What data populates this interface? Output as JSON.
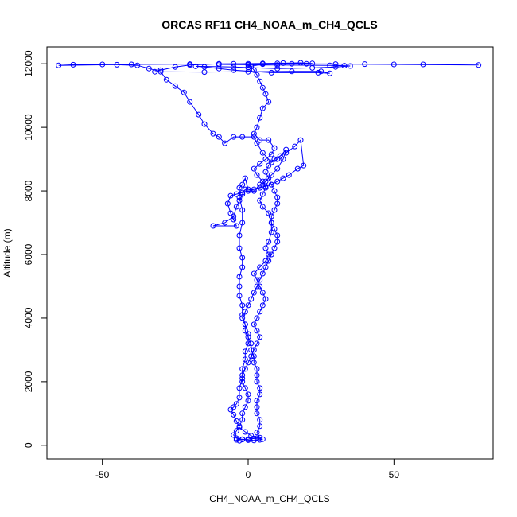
{
  "chart_data": {
    "type": "line",
    "title": "ORCAS RF11 CH4_NOAA_m_CH4_QCLS",
    "xlabel": "CH4_NOAA_m_CH4_QCLS",
    "ylabel": "Altitude (m)",
    "xlim": [
      -69,
      84
    ],
    "ylim": [
      -430,
      12530
    ],
    "xticks": [
      -50,
      0,
      50
    ],
    "yticks": [
      0,
      2000,
      4000,
      6000,
      8000,
      10000,
      12000
    ],
    "grid": false,
    "legend": "none",
    "colors": {
      "series": "#0000ff",
      "axis": "#000000"
    },
    "markers": "open-circle",
    "series": [
      {
        "points": [
          [
            -3,
            140
          ],
          [
            -4,
            170
          ],
          [
            -2,
            190
          ],
          [
            0,
            160
          ],
          [
            2,
            150
          ],
          [
            4,
            170
          ],
          [
            5,
            190
          ],
          [
            3,
            220
          ],
          [
            1,
            300
          ],
          [
            -1,
            420
          ],
          [
            -3,
            560
          ],
          [
            -4,
            760
          ],
          [
            -5,
            960
          ],
          [
            -6,
            1120
          ],
          [
            -5,
            1200
          ],
          [
            -4,
            1300
          ],
          [
            -3,
            1500
          ],
          [
            -3,
            1800
          ],
          [
            -2,
            2100
          ],
          [
            -2,
            2400
          ],
          [
            -1,
            2700
          ],
          [
            -1,
            2950
          ],
          [
            0,
            3200
          ],
          [
            0,
            3500
          ],
          [
            -1,
            3800
          ],
          [
            -2,
            4100
          ],
          [
            -2,
            4400
          ],
          [
            -3,
            4700
          ],
          [
            -3,
            5000
          ],
          [
            -3,
            5300
          ],
          [
            -2,
            5600
          ],
          [
            -2,
            5900
          ],
          [
            -3,
            6200
          ],
          [
            -3,
            6600
          ],
          [
            -2,
            7000
          ],
          [
            -2,
            7400
          ],
          [
            -3,
            7800
          ],
          [
            -3,
            8100
          ],
          [
            -2,
            8200
          ],
          [
            -1,
            8400
          ],
          [
            0,
            8050
          ],
          [
            2,
            8000
          ],
          [
            4,
            8200
          ],
          [
            6,
            8300
          ],
          [
            8,
            8500
          ],
          [
            10,
            8700
          ],
          [
            12,
            9000
          ],
          [
            13,
            9300
          ],
          [
            10,
            9000
          ],
          [
            8,
            8900
          ],
          [
            5,
            9200
          ],
          [
            3,
            9500
          ],
          [
            2,
            9700
          ],
          [
            -2,
            9700
          ],
          [
            -5,
            9700
          ],
          [
            -8,
            9500
          ],
          [
            -10,
            9700
          ],
          [
            -12,
            9800
          ],
          [
            -15,
            10100
          ],
          [
            -17,
            10400
          ],
          [
            -20,
            10800
          ],
          [
            -22,
            11100
          ],
          [
            -25,
            11300
          ],
          [
            -28,
            11500
          ],
          [
            -30,
            11750
          ],
          [
            -34,
            11850
          ],
          [
            -38,
            11950
          ],
          [
            -45,
            11970
          ],
          [
            -50,
            11980
          ],
          [
            -60,
            11970
          ],
          [
            -65,
            11950
          ],
          [
            -40,
            11980
          ],
          [
            -20,
            11990
          ],
          [
            0,
            12000
          ],
          [
            20,
            12000
          ],
          [
            40,
            11990
          ],
          [
            60,
            11980
          ],
          [
            79,
            11960
          ],
          [
            50,
            11980
          ],
          [
            30,
            11990
          ],
          [
            10,
            12010
          ],
          [
            -10,
            12000
          ],
          [
            -20,
            11960
          ],
          [
            -25,
            11900
          ],
          [
            -30,
            11800
          ],
          [
            -32,
            11750
          ],
          [
            -15,
            11740
          ],
          [
            0,
            11750
          ],
          [
            15,
            11760
          ],
          [
            25,
            11760
          ],
          [
            28,
            11700
          ],
          [
            24,
            11720
          ],
          [
            8,
            11720
          ],
          [
            -5,
            11800
          ],
          [
            -10,
            11850
          ],
          [
            -15,
            11900
          ],
          [
            -18,
            11920
          ],
          [
            -5,
            11900
          ],
          [
            0,
            11880
          ],
          [
            10,
            11850
          ],
          [
            22,
            11870
          ],
          [
            30,
            11900
          ],
          [
            35,
            11930
          ],
          [
            33,
            11940
          ],
          [
            28,
            11950
          ],
          [
            10,
            11960
          ],
          [
            0,
            11970
          ],
          [
            -10,
            11980
          ],
          [
            -5,
            12000
          ],
          [
            5,
            12010
          ],
          [
            12,
            12020
          ],
          [
            18,
            12030
          ],
          [
            22,
            12010
          ],
          [
            15,
            12000
          ],
          [
            5,
            11990
          ],
          [
            1,
            11920
          ],
          [
            2,
            11800
          ],
          [
            3,
            11650
          ],
          [
            4,
            11450
          ],
          [
            5,
            11250
          ],
          [
            6,
            11050
          ],
          [
            7,
            10800
          ],
          [
            5,
            10600
          ],
          [
            4,
            10300
          ],
          [
            3,
            10000
          ],
          [
            2,
            9800
          ],
          [
            4,
            9600
          ],
          [
            7,
            9600
          ],
          [
            9,
            9350
          ],
          [
            8,
            9150
          ],
          [
            6,
            9000
          ],
          [
            4,
            8850
          ],
          [
            2,
            8700
          ],
          [
            3,
            8500
          ],
          [
            5,
            8300
          ],
          [
            6,
            8100
          ],
          [
            5,
            7900
          ],
          [
            4,
            7700
          ],
          [
            5,
            7500
          ],
          [
            7,
            7300
          ],
          [
            8,
            7000
          ],
          [
            8,
            6700
          ],
          [
            7,
            6400
          ],
          [
            6,
            6200
          ],
          [
            7,
            6000
          ],
          [
            6,
            5800
          ],
          [
            4,
            5600
          ],
          [
            2,
            5400
          ],
          [
            3,
            5200
          ],
          [
            4,
            5000
          ],
          [
            5,
            4800
          ],
          [
            6,
            4600
          ],
          [
            5,
            4400
          ],
          [
            4,
            4200
          ],
          [
            3,
            4000
          ],
          [
            2,
            3800
          ],
          [
            3,
            3600
          ],
          [
            4,
            3400
          ],
          [
            3,
            3200
          ],
          [
            2,
            3000
          ],
          [
            1,
            2800
          ],
          [
            0,
            2600
          ],
          [
            -1,
            2400
          ],
          [
            -2,
            2200
          ],
          [
            -2,
            2000
          ],
          [
            -1,
            1800
          ],
          [
            0,
            1600
          ],
          [
            0,
            1400
          ],
          [
            -1,
            1200
          ],
          [
            -2,
            1000
          ],
          [
            -2,
            800
          ],
          [
            -3,
            600
          ],
          [
            -4,
            450
          ],
          [
            -5,
            320
          ],
          [
            -4,
            220
          ],
          [
            -2,
            180
          ],
          [
            0,
            190
          ],
          [
            2,
            210
          ],
          [
            4,
            240
          ],
          [
            3,
            400
          ],
          [
            4,
            600
          ],
          [
            4,
            800
          ],
          [
            3,
            1000
          ],
          [
            3,
            1200
          ],
          [
            3,
            1400
          ],
          [
            4,
            1600
          ],
          [
            4,
            1800
          ],
          [
            3,
            2000
          ],
          [
            3,
            2200
          ],
          [
            3,
            2400
          ],
          [
            2,
            2600
          ],
          [
            2,
            2800
          ],
          [
            1,
            3000
          ],
          [
            1,
            3200
          ],
          [
            0,
            3400
          ],
          [
            -1,
            3600
          ],
          [
            -1,
            3800
          ],
          [
            -2,
            4000
          ],
          [
            -1,
            4200
          ],
          [
            0,
            4400
          ],
          [
            1,
            4600
          ],
          [
            2,
            4800
          ],
          [
            3,
            5000
          ],
          [
            4,
            5200
          ],
          [
            5,
            5400
          ],
          [
            6,
            5600
          ],
          [
            7,
            5800
          ],
          [
            8,
            6000
          ],
          [
            9,
            6200
          ],
          [
            10,
            6400
          ],
          [
            10,
            6600
          ],
          [
            9,
            6800
          ],
          [
            8,
            7000
          ],
          [
            8,
            7200
          ],
          [
            9,
            7400
          ],
          [
            10,
            7600
          ],
          [
            10,
            7800
          ],
          [
            9,
            8000
          ],
          [
            8,
            8200
          ],
          [
            7,
            8400
          ],
          [
            6,
            8600
          ],
          [
            7,
            8800
          ],
          [
            9,
            9000
          ],
          [
            11,
            9100
          ],
          [
            13,
            9200
          ],
          [
            16,
            9400
          ],
          [
            18,
            9600
          ],
          [
            19,
            8800
          ],
          [
            17,
            8700
          ],
          [
            14,
            8500
          ],
          [
            12,
            8400
          ],
          [
            10,
            8300
          ],
          [
            8,
            8200
          ],
          [
            6,
            8150
          ],
          [
            4,
            8100
          ],
          [
            2,
            8050
          ],
          [
            0,
            8000
          ],
          [
            -2,
            7950
          ],
          [
            -4,
            7900
          ],
          [
            -6,
            7850
          ],
          [
            -7,
            7600
          ],
          [
            -6,
            7300
          ],
          [
            -5,
            7100
          ],
          [
            -4,
            6900
          ],
          [
            -12,
            6900
          ],
          [
            -8,
            7000
          ],
          [
            -5,
            7200
          ],
          [
            -4,
            7500
          ],
          [
            -3,
            7700
          ],
          [
            -2,
            7900
          ],
          [
            -1,
            8050
          ]
        ]
      }
    ]
  }
}
